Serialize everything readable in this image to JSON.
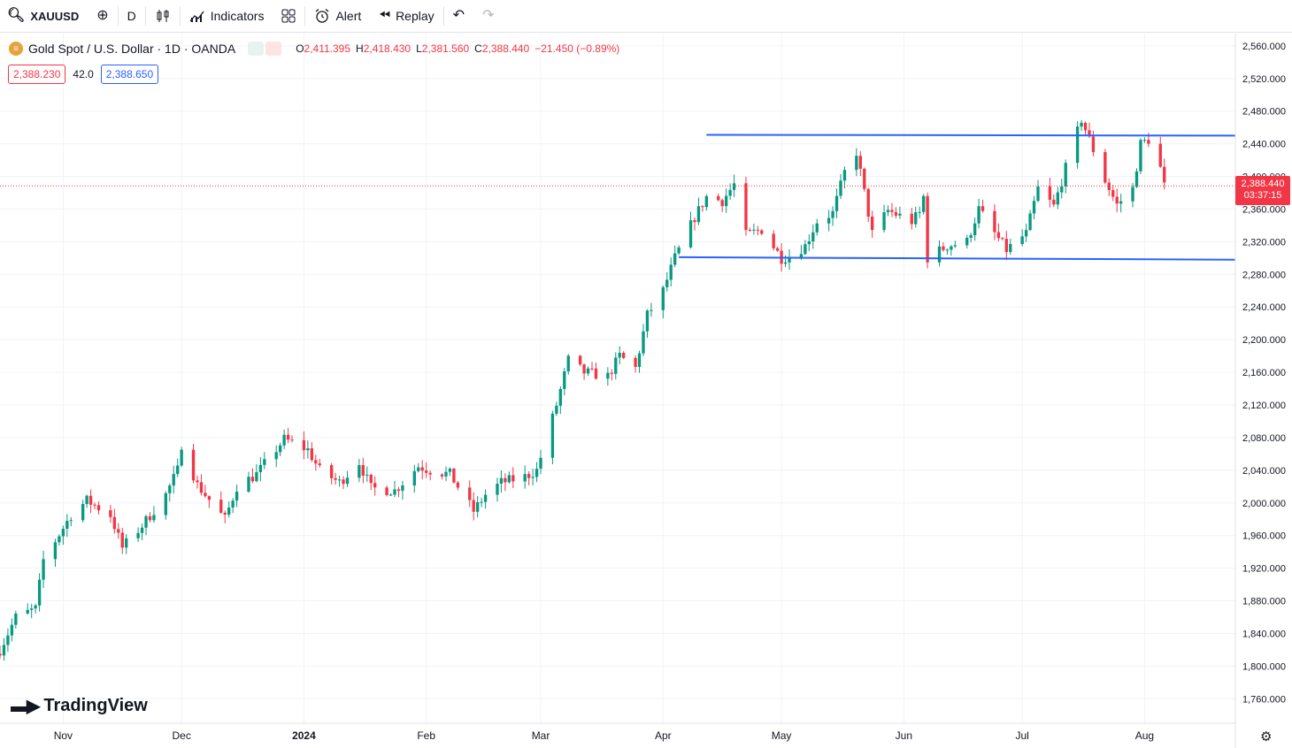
{
  "toolbar": {
    "symbol": "XAUUSD",
    "interval": "D",
    "indicators_label": "Indicators",
    "alert_label": "Alert",
    "replay_label": "Replay"
  },
  "legend": {
    "title": "Gold Spot / U.S. Dollar · 1D · OANDA",
    "open_key": "O",
    "open": "2,411.395",
    "high_key": "H",
    "high": "2,418.430",
    "low_key": "L",
    "low": "2,381.560",
    "close_key": "C",
    "close": "2,388.440",
    "change": "−21.450 (−0.89%)"
  },
  "spread": {
    "bid": "2,388.230",
    "value": "42.0",
    "ask": "2,388.650"
  },
  "last_price": {
    "price": "2,388.440",
    "countdown": "03:37:15",
    "value": 2388.44
  },
  "branding": {
    "name": "TradingView"
  },
  "colors": {
    "up": "#089981",
    "down": "#f23645",
    "trendline": "#2962ff",
    "grid": "#f0f3fa"
  },
  "chart_data": {
    "type": "candlestick",
    "symbol": "XAUUSD",
    "interval": "1D",
    "ylim": [
      1730,
      2575
    ],
    "y_ticks": [
      2560,
      2520,
      2480,
      2440,
      2400,
      2360,
      2320,
      2280,
      2240,
      2200,
      2160,
      2120,
      2080,
      2040,
      2000,
      1960,
      1920,
      1880,
      1840,
      1800,
      1760
    ],
    "y_tick_labels": [
      "2,560.000",
      "2,520.000",
      "2,480.000",
      "2,440.000",
      "2,400.000",
      "2,360.000",
      "2,320.000",
      "2,280.000",
      "2,240.000",
      "2,200.000",
      "2,160.000",
      "2,120.000",
      "2,080.000",
      "2,040.000",
      "2,000.000",
      "1,960.000",
      "1,920.000",
      "1,880.000",
      "1,840.000",
      "1,800.000",
      "1,760.000"
    ],
    "x_range": [
      "2023-10-16",
      "2024-08-24"
    ],
    "x_ticks": [
      {
        "date": "2023-11-01",
        "label": "Nov"
      },
      {
        "date": "2023-12-01",
        "label": "Dec"
      },
      {
        "date": "2024-01-01",
        "label": "2024"
      },
      {
        "date": "2024-02-01",
        "label": "Feb"
      },
      {
        "date": "2024-03-01",
        "label": "Mar"
      },
      {
        "date": "2024-04-01",
        "label": "Apr"
      },
      {
        "date": "2024-05-01",
        "label": "May"
      },
      {
        "date": "2024-06-01",
        "label": "Jun"
      },
      {
        "date": "2024-07-01",
        "label": "Jul"
      },
      {
        "date": "2024-08-01",
        "label": "Aug"
      }
    ],
    "trendlines": [
      {
        "name": "resistance",
        "from": {
          "date": "2024-04-12",
          "price": 2451
        },
        "to": {
          "date": "2024-08-24",
          "price": 2450
        }
      },
      {
        "name": "support",
        "from": {
          "date": "2024-04-05",
          "price": 2301
        },
        "to": {
          "date": "2024-08-24",
          "price": 2298
        }
      }
    ],
    "anchors": [
      {
        "date": "2023-10-16",
        "price": 1820
      },
      {
        "date": "2023-10-20",
        "price": 1860
      },
      {
        "date": "2023-10-25",
        "price": 1870
      },
      {
        "date": "2023-10-27",
        "price": 1930
      },
      {
        "date": "2023-11-03",
        "price": 1985
      },
      {
        "date": "2023-11-07",
        "price": 2003
      },
      {
        "date": "2023-11-13",
        "price": 1985
      },
      {
        "date": "2023-11-16",
        "price": 1945
      },
      {
        "date": "2023-11-21",
        "price": 1972
      },
      {
        "date": "2023-11-27",
        "price": 2010
      },
      {
        "date": "2023-11-30",
        "price": 2040
      },
      {
        "date": "2023-12-01",
        "price": 2072
      },
      {
        "date": "2023-12-05",
        "price": 2022
      },
      {
        "date": "2023-12-12",
        "price": 1980
      },
      {
        "date": "2023-12-15",
        "price": 2020
      },
      {
        "date": "2023-12-20",
        "price": 2035
      },
      {
        "date": "2023-12-27",
        "price": 2078
      },
      {
        "date": "2024-01-02",
        "price": 2065
      },
      {
        "date": "2024-01-05",
        "price": 2040
      },
      {
        "date": "2024-01-10",
        "price": 2025
      },
      {
        "date": "2024-01-15",
        "price": 2050
      },
      {
        "date": "2024-01-18",
        "price": 2018
      },
      {
        "date": "2024-01-24",
        "price": 2015
      },
      {
        "date": "2024-01-30",
        "price": 2045
      },
      {
        "date": "2024-02-02",
        "price": 2040
      },
      {
        "date": "2024-02-07",
        "price": 2035
      },
      {
        "date": "2024-02-13",
        "price": 1990
      },
      {
        "date": "2024-02-16",
        "price": 2010
      },
      {
        "date": "2024-02-20",
        "price": 2025
      },
      {
        "date": "2024-02-26",
        "price": 2032
      },
      {
        "date": "2024-02-29",
        "price": 2040
      },
      {
        "date": "2024-03-05",
        "price": 2120
      },
      {
        "date": "2024-03-08",
        "price": 2175
      },
      {
        "date": "2024-03-12",
        "price": 2160
      },
      {
        "date": "2024-03-18",
        "price": 2155
      },
      {
        "date": "2024-03-21",
        "price": 2180
      },
      {
        "date": "2024-03-25",
        "price": 2165
      },
      {
        "date": "2024-03-28",
        "price": 2230
      },
      {
        "date": "2024-04-01",
        "price": 2260
      },
      {
        "date": "2024-04-04",
        "price": 2300
      },
      {
        "date": "2024-04-09",
        "price": 2350
      },
      {
        "date": "2024-04-12",
        "price": 2375
      },
      {
        "date": "2024-04-16",
        "price": 2370
      },
      {
        "date": "2024-04-19",
        "price": 2390
      },
      {
        "date": "2024-04-22",
        "price": 2328
      },
      {
        "date": "2024-04-26",
        "price": 2335
      },
      {
        "date": "2024-05-01",
        "price": 2300
      },
      {
        "date": "2024-05-03",
        "price": 2302
      },
      {
        "date": "2024-05-07",
        "price": 2315
      },
      {
        "date": "2024-05-10",
        "price": 2345
      },
      {
        "date": "2024-05-14",
        "price": 2355
      },
      {
        "date": "2024-05-17",
        "price": 2405
      },
      {
        "date": "2024-05-20",
        "price": 2430
      },
      {
        "date": "2024-05-22",
        "price": 2380
      },
      {
        "date": "2024-05-24",
        "price": 2330
      },
      {
        "date": "2024-05-28",
        "price": 2358
      },
      {
        "date": "2024-06-03",
        "price": 2345
      },
      {
        "date": "2024-06-05",
        "price": 2355
      },
      {
        "date": "2024-06-06",
        "price": 2375
      },
      {
        "date": "2024-06-07",
        "price": 2300
      },
      {
        "date": "2024-06-12",
        "price": 2315
      },
      {
        "date": "2024-06-17",
        "price": 2320
      },
      {
        "date": "2024-06-20",
        "price": 2360
      },
      {
        "date": "2024-06-24",
        "price": 2330
      },
      {
        "date": "2024-06-27",
        "price": 2310
      },
      {
        "date": "2024-07-02",
        "price": 2330
      },
      {
        "date": "2024-07-05",
        "price": 2385
      },
      {
        "date": "2024-07-09",
        "price": 2363
      },
      {
        "date": "2024-07-12",
        "price": 2410
      },
      {
        "date": "2024-07-16",
        "price": 2470
      },
      {
        "date": "2024-07-18",
        "price": 2445
      },
      {
        "date": "2024-07-22",
        "price": 2395
      },
      {
        "date": "2024-07-25",
        "price": 2365
      },
      {
        "date": "2024-07-29",
        "price": 2385
      },
      {
        "date": "2024-07-31",
        "price": 2440
      },
      {
        "date": "2024-08-02",
        "price": 2445
      },
      {
        "date": "2024-08-05",
        "price": 2410
      },
      {
        "date": "2024-08-06",
        "price": 2388
      }
    ]
  }
}
